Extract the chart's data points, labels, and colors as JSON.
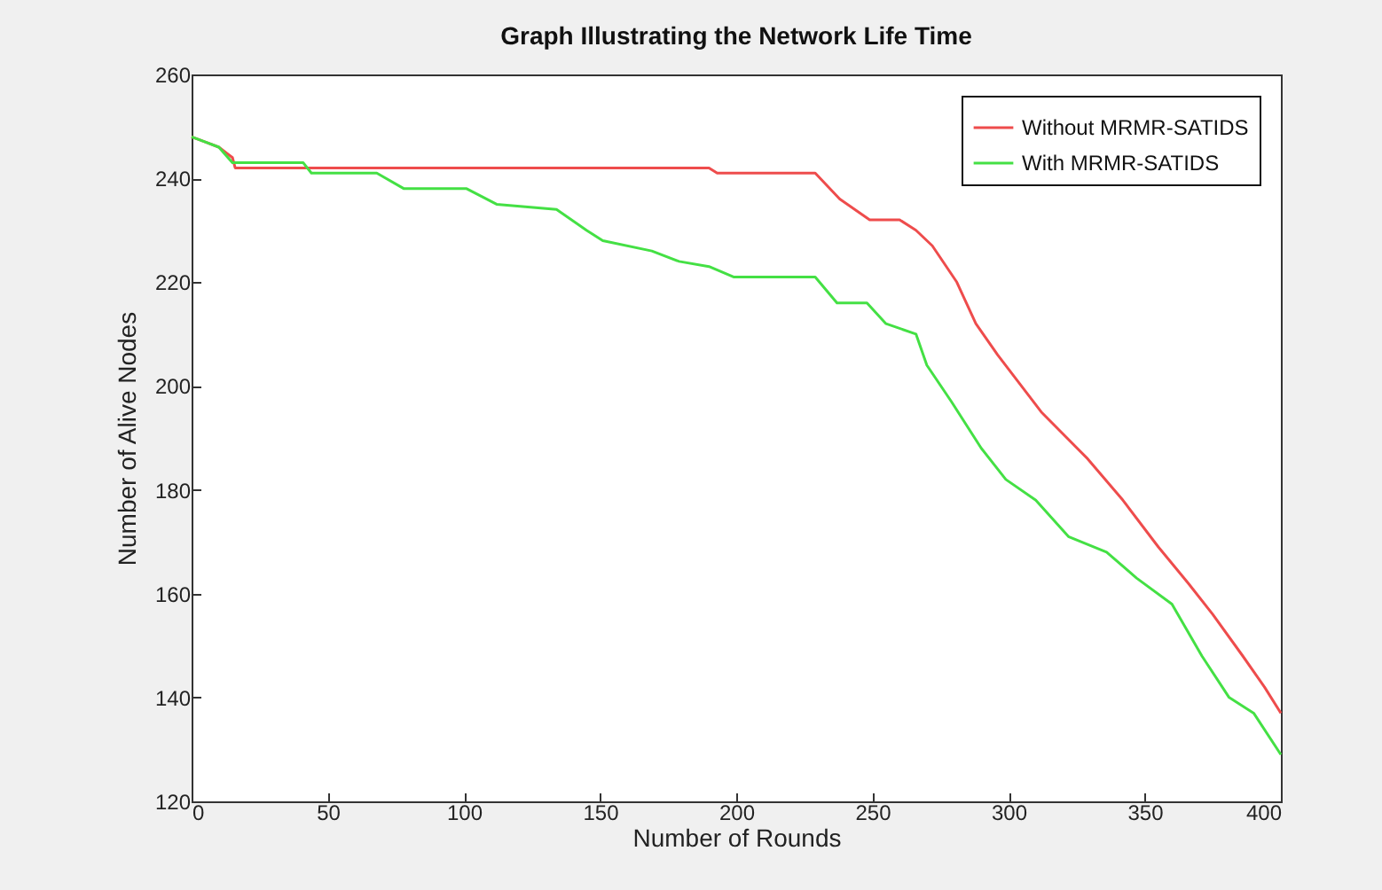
{
  "chart_data": {
    "type": "line",
    "title": "Graph Illustrating the Network Life Time",
    "xlabel": "Number of Rounds",
    "ylabel": "Number of Alive Nodes",
    "xlim": [
      0,
      400
    ],
    "xticks": [
      0,
      50,
      100,
      150,
      200,
      250,
      300,
      350,
      400
    ],
    "ylim": [
      120,
      260
    ],
    "yticks": [
      120,
      140,
      160,
      180,
      200,
      220,
      240,
      260
    ],
    "grid": false,
    "legend": "top right",
    "line_style": "solid",
    "marker": "none",
    "series": [
      {
        "name": "Without MRMR-SATIDS",
        "color": "#ee4c4c",
        "x": [
          0,
          5,
          10,
          15,
          16,
          190,
          193,
          229,
          238,
          249,
          260,
          266,
          272,
          281,
          288,
          296,
          312,
          329,
          342,
          355,
          366,
          375,
          386,
          394,
          400
        ],
        "values": [
          248,
          247,
          246,
          244,
          242,
          242,
          241,
          241,
          236,
          232,
          232,
          230,
          227,
          220,
          212,
          206,
          195,
          186,
          178,
          169,
          162,
          156,
          148,
          142,
          137
        ]
      },
      {
        "name": "With MRMR-SATIDS",
        "color": "#44e044",
        "x": [
          0,
          5,
          10,
          15,
          41,
          44,
          68,
          78,
          101,
          112,
          134,
          145,
          151,
          169,
          179,
          190,
          199,
          229,
          237,
          248,
          255,
          266,
          270,
          279,
          290,
          299,
          310,
          322,
          336,
          347,
          360,
          371,
          381,
          390,
          400
        ],
        "values": [
          248,
          247,
          246,
          243,
          243,
          241,
          241,
          238,
          238,
          235,
          234,
          230,
          228,
          226,
          224,
          223,
          221,
          221,
          216,
          216,
          212,
          210,
          204,
          197,
          188,
          182,
          178,
          171,
          168,
          163,
          158,
          148,
          140,
          137,
          129
        ]
      }
    ]
  }
}
